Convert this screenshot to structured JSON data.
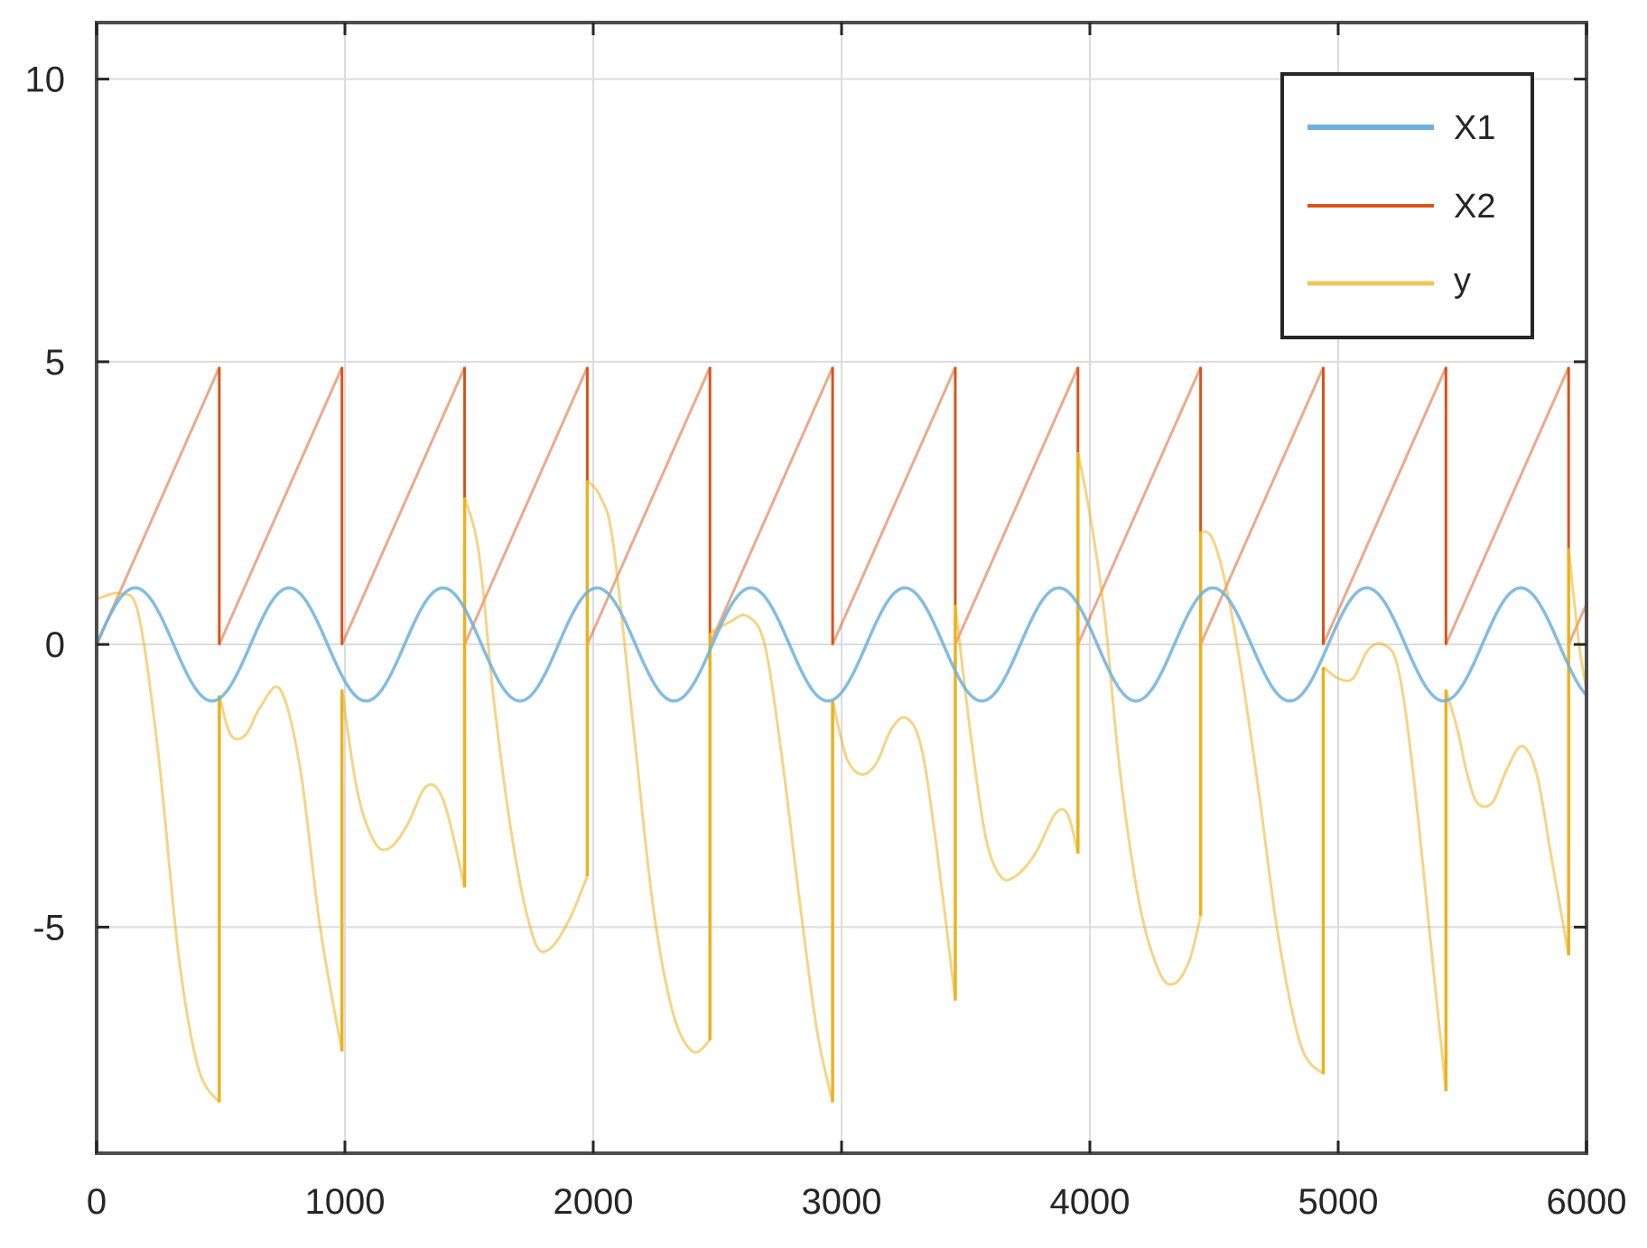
{
  "chart_data": {
    "type": "line",
    "title": "",
    "xlabel": "",
    "ylabel": "",
    "xlim": [
      0,
      6000
    ],
    "ylim": [
      -9,
      11
    ],
    "grid": true,
    "legend_position": "top-right",
    "x_ticks": [
      0,
      1000,
      2000,
      3000,
      4000,
      5000,
      6000
    ],
    "x_tick_labels": [
      "0",
      "1000",
      "2000",
      "3000",
      "4000",
      "5000",
      "6000"
    ],
    "y_ticks": [
      -5,
      0,
      5,
      10
    ],
    "y_tick_labels": [
      "-5",
      "0",
      "5",
      "10"
    ],
    "series": [
      {
        "name": "X1",
        "color": "#6fb0dd",
        "kind": "sine",
        "amplitude": 1,
        "period": 620,
        "phase_at_zero": 0,
        "x_range": [
          0,
          6000
        ]
      },
      {
        "name": "X2",
        "color": "#d95319",
        "kind": "sawtooth",
        "period": 494,
        "peak": 4.9,
        "floor": 0,
        "x_range": [
          0,
          6000
        ]
      },
      {
        "name": "y",
        "color": "#edb120",
        "kind": "segments",
        "segments": [
          {
            "x": [
              0,
              100,
              170,
              250,
              330,
              410,
              494
            ],
            "y": [
              0.8,
              0.9,
              0.5,
              -2.0,
              -5.5,
              -7.5,
              -8.1
            ]
          },
          {
            "x": [
              494,
              540,
              600,
              660,
              740,
              820,
              900,
              988
            ],
            "y": [
              -0.9,
              -1.6,
              -1.6,
              -1.1,
              -0.8,
              -2.2,
              -5.0,
              -7.2
            ]
          },
          {
            "x": [
              988,
              1050,
              1120,
              1180,
              1250,
              1330,
              1400,
              1482
            ],
            "y": [
              -0.8,
              -2.6,
              -3.5,
              -3.6,
              -3.2,
              -2.5,
              -2.8,
              -4.3
            ]
          },
          {
            "x": [
              1482,
              1540,
              1600,
              1680,
              1760,
              1820,
              1900,
              1976
            ],
            "y": [
              2.6,
              1.6,
              -1.0,
              -3.6,
              -5.2,
              -5.4,
              -4.9,
              -4.1
            ]
          },
          {
            "x": [
              1976,
              2030,
              2080,
              2160,
              2240,
              2320,
              2400,
              2470
            ],
            "y": [
              2.9,
              2.6,
              1.8,
              -1.4,
              -4.6,
              -6.5,
              -7.2,
              -7.0
            ]
          },
          {
            "x": [
              2470,
              2550,
              2620,
              2690,
              2760,
              2830,
              2900,
              2964
            ],
            "y": [
              0.2,
              0.4,
              0.5,
              0.0,
              -2.0,
              -4.5,
              -6.8,
              -8.1
            ]
          },
          {
            "x": [
              2964,
              3020,
              3080,
              3140,
              3200,
              3260,
              3320,
              3380,
              3458
            ],
            "y": [
              -1.0,
              -2.0,
              -2.3,
              -2.1,
              -1.5,
              -1.3,
              -1.8,
              -3.5,
              -6.3
            ]
          },
          {
            "x": [
              3458,
              3520,
              3580,
              3640,
              3700,
              3780,
              3860,
              3910,
              3952
            ],
            "y": [
              0.7,
              -1.6,
              -3.4,
              -4.1,
              -4.1,
              -3.7,
              -3.0,
              -3.0,
              -3.7
            ]
          },
          {
            "x": [
              3952,
              4000,
              4060,
              4120,
              4200,
              4280,
              4340,
              4400,
              4446
            ],
            "y": [
              3.4,
              2.3,
              0.5,
              -2.2,
              -4.6,
              -5.8,
              -6.0,
              -5.6,
              -4.8
            ]
          },
          {
            "x": [
              4446,
              4490,
              4540,
              4600,
              4680,
              4760,
              4850,
              4940
            ],
            "y": [
              2.0,
              1.9,
              1.2,
              -0.2,
              -2.6,
              -5.2,
              -7.1,
              -7.6
            ]
          },
          {
            "x": [
              4940,
              5000,
              5060,
              5120,
              5180,
              5240,
              5300,
              5380,
              5434
            ],
            "y": [
              -0.4,
              -0.6,
              -0.6,
              -0.1,
              0.0,
              -0.4,
              -2.2,
              -5.6,
              -7.9
            ]
          },
          {
            "x": [
              5434,
              5480,
              5520,
              5560,
              5620,
              5680,
              5740,
              5800,
              5860,
              5928
            ],
            "y": [
              -0.8,
              -1.5,
              -2.3,
              -2.8,
              -2.8,
              -2.2,
              -1.8,
              -2.3,
              -3.8,
              -5.5
            ]
          },
          {
            "x": [
              5928,
              5970,
              6000
            ],
            "y": [
              1.7,
              0.0,
              -0.8
            ]
          }
        ]
      }
    ],
    "legend": [
      "X1",
      "X2",
      "y"
    ]
  }
}
